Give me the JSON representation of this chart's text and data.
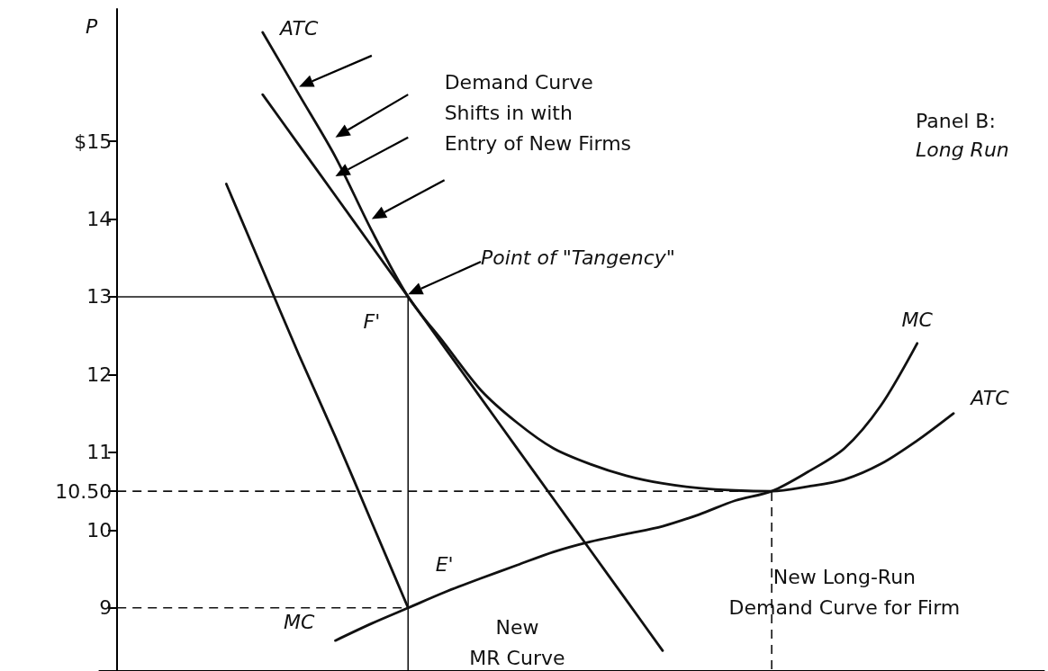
{
  "chart_data": {
    "type": "line",
    "title": "Panel B:",
    "subtitle": "Long Run",
    "ylabel": "P",
    "ylim": [
      8.2,
      16.7
    ],
    "yticks": [
      9,
      10,
      {
        "value": 10.5,
        "label": "10.50"
      },
      11,
      12,
      13,
      14,
      {
        "value": 15,
        "label": "$15"
      }
    ],
    "tick_labels": "y",
    "categories": [
      null,
      null,
      null,
      null,
      null,
      null,
      null,
      null,
      null,
      null,
      null,
      null,
      null,
      null,
      null,
      null,
      null,
      null,
      null,
      null,
      null,
      null,
      null,
      null,
      null,
      null
    ],
    "series": [
      {
        "color": "#111111",
        "values": [
          null,
          null,
          null,
          14.45,
          13.35,
          12.25,
          11.2,
          10.1,
          9.0,
          null,
          null,
          null,
          null,
          null,
          null,
          null,
          null,
          null,
          null,
          null,
          null,
          null,
          null,
          null,
          null,
          null
        ]
      },
      {
        "color": "#111111",
        "values": [
          null,
          null,
          null,
          null,
          15.6,
          14.95,
          14.3,
          13.65,
          13.0,
          12.35,
          11.7,
          11.05,
          10.4,
          9.75,
          9.1,
          8.45,
          null,
          null,
          null,
          null,
          null,
          null,
          null,
          null,
          null,
          null
        ]
      },
      {
        "color": "#111111",
        "values": [
          null,
          null,
          null,
          null,
          16.4,
          15.6,
          14.8,
          13.85,
          13.0,
          12.4,
          11.8,
          11.38,
          11.05,
          10.85,
          10.7,
          10.6,
          10.54,
          10.51,
          10.5,
          10.56,
          10.65,
          10.85,
          11.15,
          11.5,
          null,
          null
        ]
      },
      {
        "color": "#111111",
        "values": [
          null,
          null,
          null,
          null,
          null,
          null,
          8.58,
          8.8,
          9.0,
          9.2,
          9.38,
          9.55,
          9.72,
          9.85,
          9.95,
          10.05,
          10.2,
          10.38,
          10.5,
          10.75,
          11.05,
          11.6,
          12.4,
          null,
          null,
          null
        ]
      },
      {
        "color": "#111111",
        "line_style": "solid",
        "values": [
          13,
          13,
          13,
          13,
          13,
          13,
          13,
          13,
          13,
          null,
          null,
          null,
          null,
          null,
          null,
          null,
          null,
          null,
          null,
          null,
          null,
          null,
          null,
          null,
          null,
          null
        ]
      },
      {
        "color": "#111111",
        "line_style": "dashed",
        "values": [
          10.5,
          10.5,
          10.5,
          10.5,
          10.5,
          10.5,
          10.5,
          10.5,
          10.5,
          10.5,
          10.5,
          10.5,
          10.5,
          10.5,
          10.5,
          10.5,
          10.5,
          10.5,
          10.5,
          null,
          null,
          null,
          null,
          null,
          null,
          null
        ]
      },
      {
        "color": "#111111",
        "line_style": "dashed",
        "values": [
          9,
          9,
          9,
          9,
          9,
          9,
          9,
          9,
          9,
          null,
          null,
          null,
          null,
          null,
          null,
          null,
          null,
          null,
          null,
          null,
          null,
          null,
          null,
          null,
          null,
          null
        ]
      }
    ],
    "annotations": [
      "ATC",
      "Demand Curve\nShifts in with\nEntry of New Firms",
      "Point of \"Tangency\"",
      "F'",
      "E'",
      "MC",
      "New\nMR Curve",
      "New Long-Run\nDemand Curve for Firm",
      "MC",
      "ATC"
    ]
  }
}
